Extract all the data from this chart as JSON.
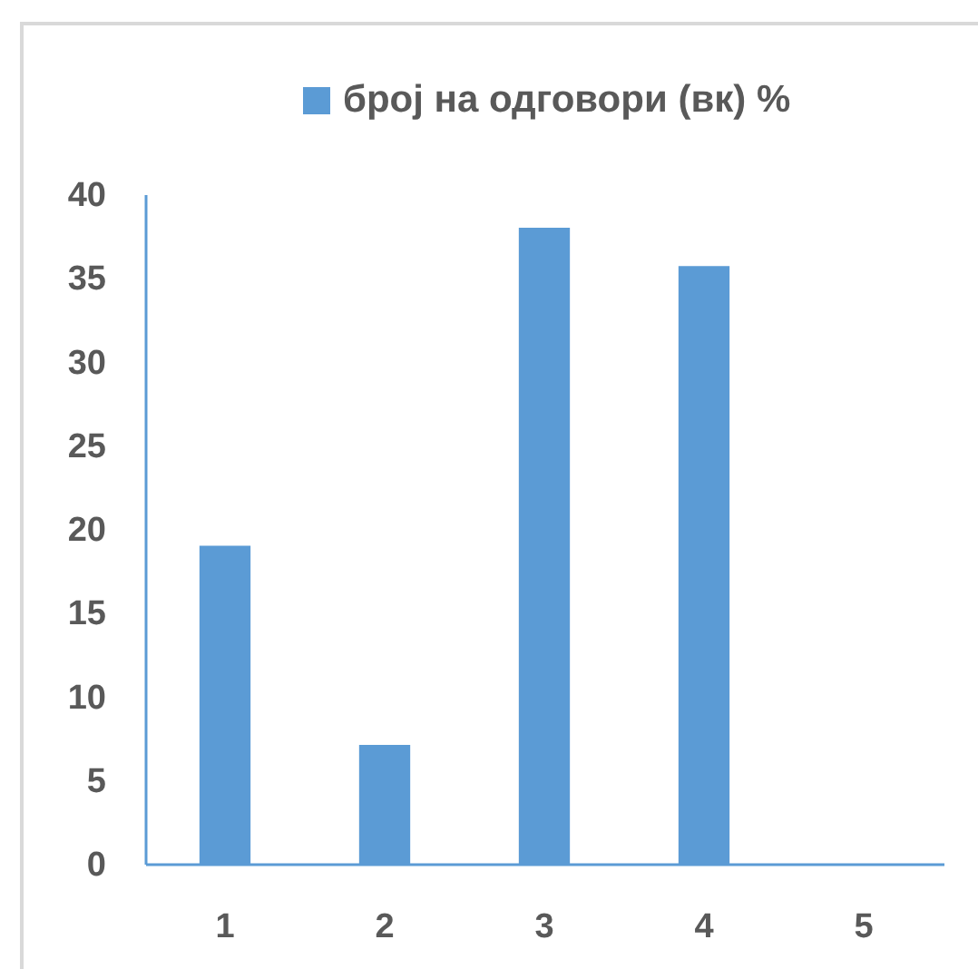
{
  "chart_data": {
    "type": "bar",
    "categories": [
      "1",
      "2",
      "3",
      "4",
      "5"
    ],
    "series": [
      {
        "name": "број на одговори (вк) %",
        "color": "#5b9bd5",
        "values": [
          19,
          7.1,
          38,
          35.7,
          0
        ]
      }
    ],
    "ylim": [
      0,
      40
    ],
    "yticks": [
      0,
      5,
      10,
      15,
      20,
      25,
      30,
      35,
      40
    ],
    "legend": "top"
  }
}
